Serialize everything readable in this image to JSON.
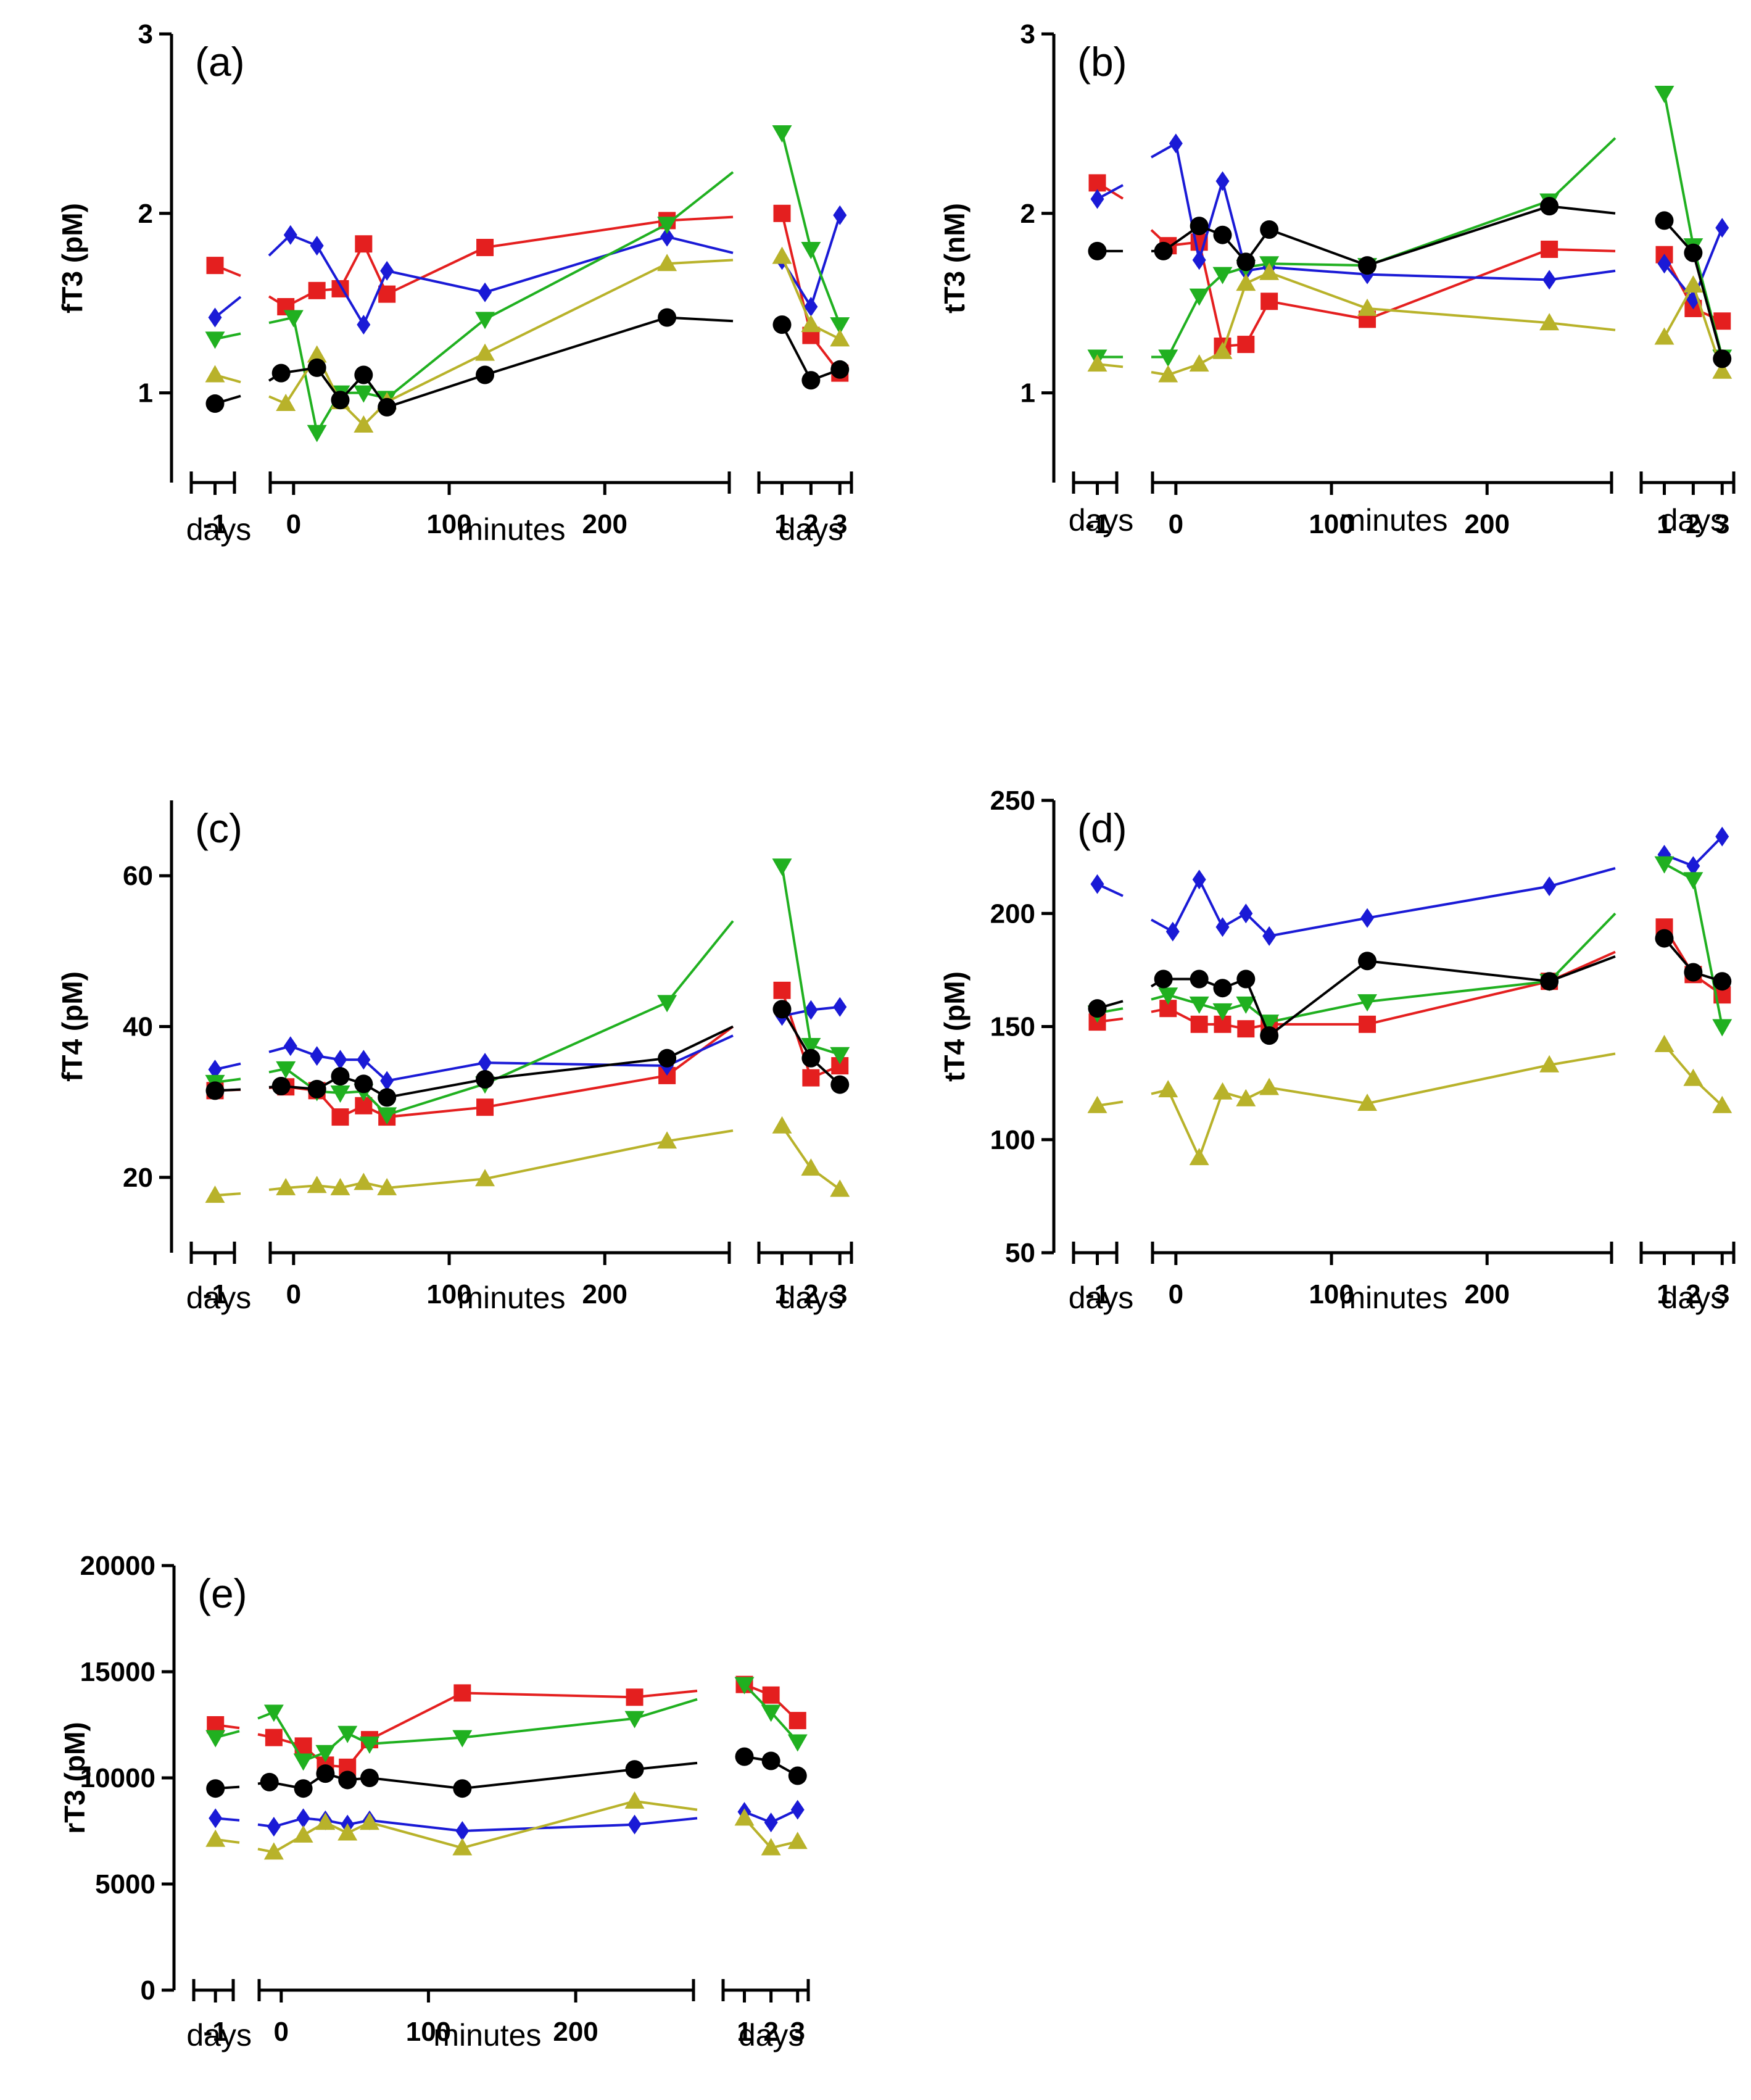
{
  "figure": {
    "x_axis_segments": [
      {
        "key": "pre",
        "ticks": [
          "-1"
        ],
        "label": "days"
      },
      {
        "key": "min",
        "ticks": [
          "0",
          "100",
          "200"
        ],
        "label": "minutes"
      },
      {
        "key": "post",
        "ticks": [
          "1",
          "2",
          "3"
        ],
        "label": "days"
      }
    ],
    "series_colors": {
      "red": "#e41f1f",
      "blue": "#1a1ad6",
      "green": "#20b020",
      "olive": "#b8b22a",
      "black": "#000000"
    },
    "series_markers": {
      "red": "square",
      "blue": "diamond",
      "green": "triangle-down",
      "olive": "triangle-up",
      "black": "circle"
    }
  },
  "chart_data": [
    {
      "id": "a",
      "type": "line",
      "panel_label": "(a)",
      "ylabel": "fT3 (pM)",
      "ylim": [
        0.5,
        3
      ],
      "yticks": [
        "1",
        "2",
        "3"
      ],
      "ytick_values": [
        1,
        2,
        3
      ],
      "x_minutes_range": [
        -15,
        280
      ],
      "series": [
        {
          "name": "red",
          "pre": 1.71,
          "minutes": [
            [
              -5,
              1.48
            ],
            [
              15,
              1.57
            ],
            [
              30,
              1.58
            ],
            [
              45,
              1.83
            ],
            [
              60,
              1.55
            ],
            [
              123,
              1.81
            ],
            [
              240,
              1.96
            ]
          ],
          "end": 1.98,
          "days": [
            2.0,
            1.32,
            1.11
          ]
        },
        {
          "name": "blue",
          "pre": 1.42,
          "minutes": [
            [
              -2,
              1.88
            ],
            [
              15,
              1.82
            ],
            [
              45,
              1.38
            ],
            [
              60,
              1.68
            ],
            [
              123,
              1.56
            ],
            [
              240,
              1.87
            ]
          ],
          "end": 1.78,
          "days": [
            1.74,
            1.48,
            1.99
          ]
        },
        {
          "name": "green",
          "pre": 1.3,
          "minutes": [
            [
              0,
              1.42
            ],
            [
              15,
              0.78
            ],
            [
              30,
              1.0
            ],
            [
              45,
              1.0
            ],
            [
              60,
              0.97
            ],
            [
              123,
              1.41
            ],
            [
              240,
              1.94
            ]
          ],
          "end": 2.23,
          "days": [
            2.45,
            1.8,
            1.38
          ]
        },
        {
          "name": "olive",
          "pre": 1.1,
          "minutes": [
            [
              -5,
              0.94
            ],
            [
              15,
              1.21
            ],
            [
              30,
              0.95
            ],
            [
              45,
              0.82
            ],
            [
              60,
              0.95
            ],
            [
              123,
              1.22
            ],
            [
              240,
              1.72
            ]
          ],
          "end": 1.74,
          "days": [
            1.76,
            1.38,
            1.3
          ]
        },
        {
          "name": "black",
          "pre": 0.94,
          "minutes": [
            [
              -8,
              1.11
            ],
            [
              15,
              1.14
            ],
            [
              30,
              0.96
            ],
            [
              45,
              1.1
            ],
            [
              60,
              0.92
            ],
            [
              123,
              1.1
            ],
            [
              240,
              1.42
            ]
          ],
          "end": 1.4,
          "days": [
            1.38,
            1.07,
            1.13
          ]
        }
      ]
    },
    {
      "id": "b",
      "type": "line",
      "panel_label": "(b)",
      "ylabel": "tT3 (nM)",
      "ylim": [
        0.5,
        3
      ],
      "yticks": [
        "1",
        "2",
        "3"
      ],
      "ytick_values": [
        1,
        2,
        3
      ],
      "x_minutes_range": [
        -15,
        280
      ],
      "series": [
        {
          "name": "red",
          "pre": 2.17,
          "minutes": [
            [
              -5,
              1.82
            ],
            [
              15,
              1.84
            ],
            [
              30,
              1.26
            ],
            [
              45,
              1.27
            ],
            [
              60,
              1.51
            ],
            [
              123,
              1.41
            ],
            [
              240,
              1.8
            ]
          ],
          "end": 1.79,
          "days": [
            1.77,
            1.47,
            1.4
          ]
        },
        {
          "name": "blue",
          "pre": 2.08,
          "minutes": [
            [
              0,
              2.39
            ],
            [
              15,
              1.74
            ],
            [
              30,
              2.18
            ],
            [
              45,
              1.68
            ],
            [
              60,
              1.7
            ],
            [
              123,
              1.66
            ],
            [
              240,
              1.63
            ]
          ],
          "end": 1.68,
          "days": [
            1.72,
            1.52,
            1.92
          ]
        },
        {
          "name": "green",
          "pre": 1.2,
          "minutes": [
            [
              -5,
              1.2
            ],
            [
              15,
              1.54
            ],
            [
              30,
              1.66
            ],
            [
              45,
              1.7
            ],
            [
              60,
              1.72
            ],
            [
              123,
              1.71
            ],
            [
              240,
              2.07
            ]
          ],
          "end": 2.42,
          "days": [
            2.67,
            1.82,
            1.2
          ]
        },
        {
          "name": "olive",
          "pre": 1.16,
          "minutes": [
            [
              -5,
              1.1
            ],
            [
              15,
              1.16
            ],
            [
              30,
              1.23
            ],
            [
              45,
              1.61
            ],
            [
              60,
              1.67
            ],
            [
              123,
              1.47
            ],
            [
              240,
              1.39
            ]
          ],
          "end": 1.35,
          "days": [
            1.31,
            1.6,
            1.12
          ]
        },
        {
          "name": "black",
          "pre": 1.79,
          "minutes": [
            [
              -8,
              1.79
            ],
            [
              15,
              1.93
            ],
            [
              30,
              1.88
            ],
            [
              45,
              1.73
            ],
            [
              60,
              1.91
            ],
            [
              123,
              1.71
            ],
            [
              240,
              2.04
            ]
          ],
          "end": 2.0,
          "days": [
            1.96,
            1.78,
            1.19
          ]
        }
      ]
    },
    {
      "id": "c",
      "type": "line",
      "panel_label": "(c)",
      "ylabel": "fT4 (pM)",
      "ylim": [
        10,
        70
      ],
      "yticks": [
        "20",
        "40",
        "60"
      ],
      "ytick_values": [
        20,
        40,
        60
      ],
      "x_minutes_range": [
        -15,
        280
      ],
      "series": [
        {
          "name": "red",
          "pre": 31.5,
          "minutes": [
            [
              -5,
              32
            ],
            [
              15,
              31.5
            ],
            [
              30,
              28
            ],
            [
              45,
              29.5
            ],
            [
              60,
              28
            ],
            [
              123,
              29.3
            ],
            [
              240,
              33.5
            ]
          ],
          "end": 40,
          "days": [
            44.8,
            33.2,
            34.8
          ]
        },
        {
          "name": "blue",
          "pre": 34.3,
          "minutes": [
            [
              -2,
              37.4
            ],
            [
              15,
              36.1
            ],
            [
              30,
              35.6
            ],
            [
              45,
              35.6
            ],
            [
              60,
              32.8
            ],
            [
              123,
              35.2
            ],
            [
              240,
              34.8
            ]
          ],
          "end": 38.8,
          "days": [
            41.4,
            42.2,
            42.6
          ]
        },
        {
          "name": "green",
          "pre": 32.6,
          "minutes": [
            [
              -5,
              34.4
            ],
            [
              15,
              31.4
            ],
            [
              30,
              31.2
            ],
            [
              45,
              31.4
            ],
            [
              60,
              28.3
            ],
            [
              123,
              32.4
            ],
            [
              240,
              43.2
            ]
          ],
          "end": 54,
          "days": [
            61.3,
            37.5,
            36.3
          ]
        },
        {
          "name": "olive",
          "pre": 17.6,
          "minutes": [
            [
              -5,
              18.6
            ],
            [
              15,
              18.9
            ],
            [
              30,
              18.6
            ],
            [
              45,
              19.3
            ],
            [
              60,
              18.6
            ],
            [
              123,
              19.8
            ],
            [
              240,
              24.8
            ]
          ],
          "end": 26.2,
          "days": [
            26.8,
            21.2,
            18.4
          ]
        },
        {
          "name": "black",
          "pre": 31.5,
          "minutes": [
            [
              -8,
              32.1
            ],
            [
              15,
              31.7
            ],
            [
              30,
              33.4
            ],
            [
              45,
              32.4
            ],
            [
              60,
              30.6
            ],
            [
              123,
              33.0
            ],
            [
              240,
              35.8
            ]
          ],
          "end": 40,
          "days": [
            42.3,
            35.8,
            32.3
          ]
        }
      ]
    },
    {
      "id": "d",
      "type": "line",
      "panel_label": "(d)",
      "ylabel": "tT4 (pM)",
      "ylim": [
        50,
        250
      ],
      "yticks": [
        "50",
        "100",
        "150",
        "200",
        "250"
      ],
      "ytick_values": [
        50,
        100,
        150,
        200,
        250
      ],
      "x_minutes_range": [
        -15,
        280
      ],
      "series": [
        {
          "name": "red",
          "pre": 152,
          "minutes": [
            [
              -5,
              158
            ],
            [
              15,
              151
            ],
            [
              30,
              151
            ],
            [
              45,
              149
            ],
            [
              60,
              151
            ],
            [
              123,
              151
            ],
            [
              240,
              170
            ]
          ],
          "end": 183,
          "days": [
            194,
            173,
            164
          ]
        },
        {
          "name": "blue",
          "pre": 213,
          "minutes": [
            [
              -2,
              192
            ],
            [
              15,
              215
            ],
            [
              30,
              194
            ],
            [
              45,
              200
            ],
            [
              60,
              190
            ],
            [
              123,
              198
            ],
            [
              240,
              212
            ]
          ],
          "end": 220,
          "days": [
            226,
            221,
            234
          ]
        },
        {
          "name": "green",
          "pre": 156,
          "minutes": [
            [
              -5,
              164
            ],
            [
              15,
              160
            ],
            [
              30,
              157
            ],
            [
              45,
              160
            ],
            [
              60,
              152
            ],
            [
              123,
              161
            ],
            [
              240,
              170
            ]
          ],
          "end": 200,
          "days": [
            222,
            215,
            150
          ]
        },
        {
          "name": "olive",
          "pre": 115,
          "minutes": [
            [
              -5,
              122
            ],
            [
              15,
              92
            ],
            [
              30,
              121
            ],
            [
              45,
              118
            ],
            [
              60,
              123
            ],
            [
              123,
              116
            ],
            [
              240,
              133
            ]
          ],
          "end": 138,
          "days": [
            142,
            127,
            115
          ]
        },
        {
          "name": "black",
          "pre": 158,
          "minutes": [
            [
              -8,
              171
            ],
            [
              15,
              171
            ],
            [
              30,
              167
            ],
            [
              45,
              171
            ],
            [
              60,
              146
            ],
            [
              123,
              179
            ],
            [
              240,
              170
            ]
          ],
          "end": 181,
          "days": [
            189,
            174,
            170
          ]
        }
      ]
    },
    {
      "id": "e",
      "type": "line",
      "panel_label": "(e)",
      "ylabel": "rT3 (pM)",
      "ylim": [
        0,
        20000
      ],
      "yticks": [
        "0",
        "5000",
        "10000",
        "15000",
        "20000"
      ],
      "ytick_values": [
        0,
        5000,
        10000,
        15000,
        20000
      ],
      "x_minutes_range": [
        -15,
        280
      ],
      "series": [
        {
          "name": "red",
          "pre": 12500,
          "minutes": [
            [
              -5,
              11900
            ],
            [
              15,
              11500
            ],
            [
              30,
              10600
            ],
            [
              45,
              10500
            ],
            [
              60,
              11800
            ],
            [
              123,
              14000
            ],
            [
              240,
              13800
            ]
          ],
          "end": 14100,
          "days": [
            14400,
            13900,
            12700
          ]
        },
        {
          "name": "blue",
          "pre": 8100,
          "minutes": [
            [
              -5,
              7700
            ],
            [
              15,
              8100
            ],
            [
              30,
              8000
            ],
            [
              45,
              7800
            ],
            [
              60,
              8000
            ],
            [
              123,
              7500
            ],
            [
              240,
              7800
            ]
          ],
          "end": 8100,
          "days": [
            8400,
            7900,
            8500
          ]
        },
        {
          "name": "green",
          "pre": 11900,
          "minutes": [
            [
              -5,
              13100
            ],
            [
              15,
              10800
            ],
            [
              30,
              11200
            ],
            [
              45,
              12100
            ],
            [
              60,
              11600
            ],
            [
              123,
              11900
            ],
            [
              240,
              12800
            ]
          ],
          "end": 13700,
          "days": [
            14400,
            13100,
            11700
          ]
        },
        {
          "name": "olive",
          "pre": 7100,
          "minutes": [
            [
              -5,
              6500
            ],
            [
              15,
              7300
            ],
            [
              30,
              7900
            ],
            [
              45,
              7400
            ],
            [
              60,
              7900
            ],
            [
              123,
              6700
            ],
            [
              240,
              8900
            ]
          ],
          "end": 8500,
          "days": [
            8100,
            6700,
            7000
          ]
        },
        {
          "name": "black",
          "pre": 9500,
          "minutes": [
            [
              -8,
              9800
            ],
            [
              15,
              9500
            ],
            [
              30,
              10200
            ],
            [
              45,
              9900
            ],
            [
              60,
              10000
            ],
            [
              123,
              9500
            ],
            [
              240,
              10400
            ]
          ],
          "end": 10700,
          "days": [
            11000,
            10800,
            10100
          ]
        }
      ]
    }
  ]
}
